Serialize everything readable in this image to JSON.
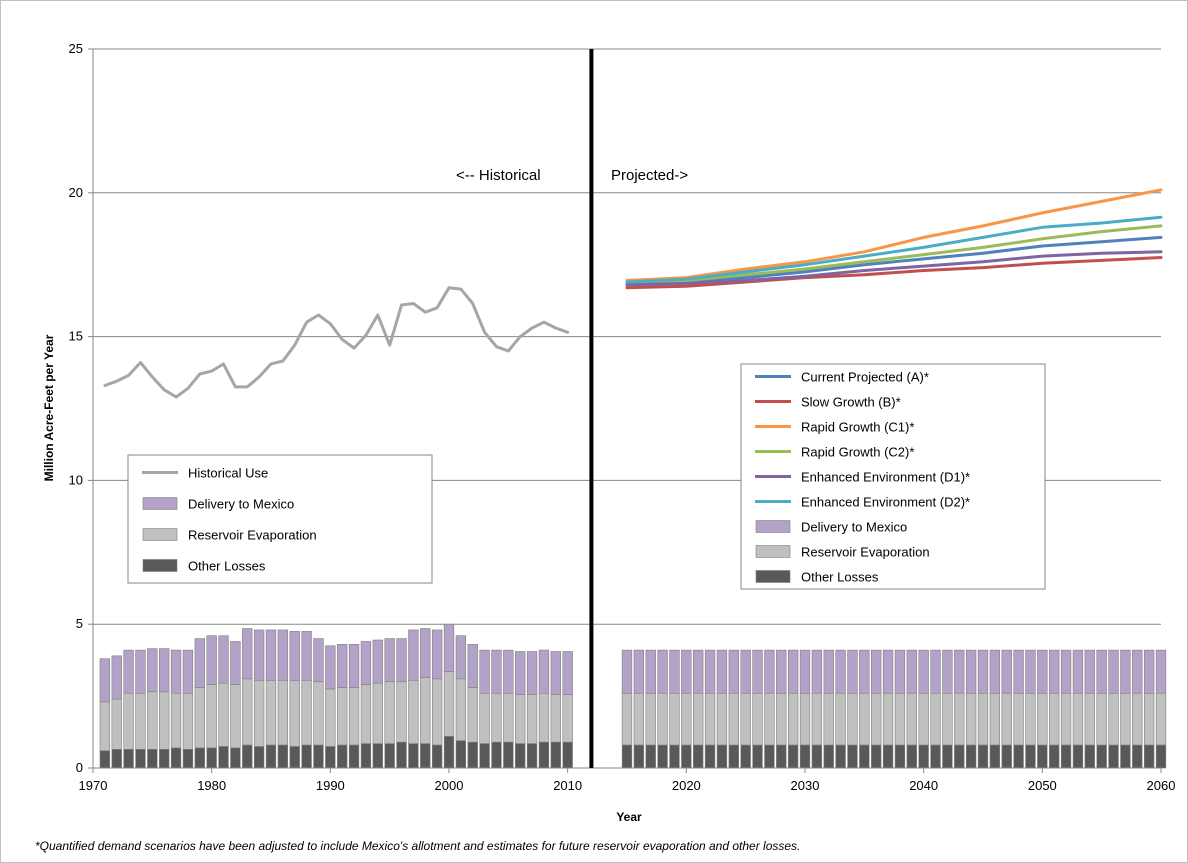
{
  "chart_data": {
    "type": "line+stacked-bar",
    "ylabel": "Million Acre-Feet per Year",
    "xlabel": "Year",
    "xlim": [
      1970,
      2060
    ],
    "ylim": [
      0,
      25
    ],
    "yticks": [
      "0",
      "5",
      "10",
      "15",
      "20",
      "25"
    ],
    "xticks": [
      "1970",
      "1980",
      "1990",
      "2000",
      "2010",
      "2020",
      "2030",
      "2040",
      "2050",
      "2060"
    ],
    "divider_year": 2012,
    "annotations": {
      "historical": "<-- Historical",
      "projected": "Projected->"
    },
    "footnote": "*Quantified demand scenarios have been adjusted to include Mexico's allotment and estimates for future reservoir evaporation and other losses.",
    "colors": {
      "historical": "#a6a6a6",
      "mexico": "#b3a2c7",
      "evaporation": "#c0c0c0",
      "other": "#595959",
      "A": "#4f81bd",
      "B": "#c0504d",
      "C1": "#f79646",
      "C2": "#9bbb59",
      "D1": "#8064a2",
      "D2": "#4bacc6"
    },
    "historical_use": {
      "name": "Historical Use",
      "x": [
        1971,
        1972,
        1973,
        1974,
        1975,
        1976,
        1977,
        1978,
        1979,
        1980,
        1981,
        1982,
        1983,
        1984,
        1985,
        1986,
        1987,
        1988,
        1989,
        1990,
        1991,
        1992,
        1993,
        1994,
        1995,
        1996,
        1997,
        1998,
        1999,
        2000,
        2001,
        2002,
        2003,
        2004,
        2005,
        2006,
        2007,
        2008,
        2009,
        2010
      ],
      "y": [
        13.3,
        13.45,
        13.65,
        14.1,
        13.6,
        13.15,
        12.9,
        13.2,
        13.7,
        13.8,
        14.05,
        13.25,
        13.25,
        13.6,
        14.05,
        14.15,
        14.7,
        15.5,
        15.75,
        15.45,
        14.9,
        14.6,
        15.05,
        15.75,
        14.7,
        16.1,
        16.15,
        15.85,
        16.0,
        16.7,
        16.65,
        16.15,
        15.15,
        14.65,
        14.5,
        15.0,
        15.3,
        15.5,
        15.3,
        15.15
      ]
    },
    "historical_bars": {
      "x": [
        1971,
        1972,
        1973,
        1974,
        1975,
        1976,
        1977,
        1978,
        1979,
        1980,
        1981,
        1982,
        1983,
        1984,
        1985,
        1986,
        1987,
        1988,
        1989,
        1990,
        1991,
        1992,
        1993,
        1994,
        1995,
        1996,
        1997,
        1998,
        1999,
        2000,
        2001,
        2002,
        2003,
        2004,
        2005,
        2006,
        2007,
        2008,
        2009,
        2010
      ],
      "other": [
        0.6,
        0.65,
        0.65,
        0.65,
        0.65,
        0.65,
        0.7,
        0.65,
        0.7,
        0.7,
        0.75,
        0.7,
        0.8,
        0.75,
        0.8,
        0.8,
        0.75,
        0.8,
        0.8,
        0.75,
        0.8,
        0.8,
        0.85,
        0.85,
        0.85,
        0.9,
        0.85,
        0.85,
        0.8,
        1.1,
        0.95,
        0.9,
        0.85,
        0.9,
        0.9,
        0.85,
        0.85,
        0.9,
        0.9,
        0.9
      ],
      "evaporation": [
        1.7,
        1.75,
        1.95,
        1.95,
        2.0,
        2.0,
        1.9,
        1.95,
        2.1,
        2.2,
        2.2,
        2.2,
        2.3,
        2.3,
        2.25,
        2.25,
        2.3,
        2.25,
        2.2,
        2.0,
        2.0,
        2.0,
        2.05,
        2.1,
        2.15,
        2.1,
        2.2,
        2.3,
        2.3,
        2.25,
        2.15,
        1.9,
        1.75,
        1.7,
        1.7,
        1.7,
        1.7,
        1.7,
        1.65,
        1.65
      ],
      "mexico": [
        1.5,
        1.5,
        1.5,
        1.5,
        1.5,
        1.5,
        1.5,
        1.5,
        1.7,
        1.7,
        1.65,
        1.5,
        1.75,
        1.75,
        1.75,
        1.75,
        1.7,
        1.7,
        1.5,
        1.5,
        1.5,
        1.5,
        1.5,
        1.5,
        1.5,
        1.5,
        1.75,
        1.7,
        1.7,
        1.65,
        1.5,
        1.5,
        1.5,
        1.5,
        1.5,
        1.5,
        1.5,
        1.5,
        1.5,
        1.5
      ]
    },
    "projected_bars": {
      "x_start": 2015,
      "x_end": 2060,
      "other": 0.8,
      "evaporation": 1.8,
      "mexico": 1.5
    },
    "projected_series": [
      {
        "key": "A",
        "name": "Current Projected (A)*",
        "x": [
          2015,
          2020,
          2025,
          2030,
          2035,
          2040,
          2045,
          2050,
          2055,
          2060
        ],
        "y": [
          16.8,
          16.9,
          17.05,
          17.25,
          17.5,
          17.7,
          17.9,
          18.15,
          18.3,
          18.45
        ]
      },
      {
        "key": "B",
        "name": "Slow Growth (B)*",
        "x": [
          2015,
          2020,
          2025,
          2030,
          2035,
          2040,
          2045,
          2050,
          2055,
          2060
        ],
        "y": [
          16.7,
          16.75,
          16.9,
          17.05,
          17.15,
          17.3,
          17.4,
          17.55,
          17.65,
          17.75
        ]
      },
      {
        "key": "C1",
        "name": "Rapid Growth (C1)*",
        "x": [
          2015,
          2020,
          2025,
          2030,
          2035,
          2040,
          2045,
          2050,
          2055,
          2060
        ],
        "y": [
          16.95,
          17.05,
          17.35,
          17.6,
          17.95,
          18.45,
          18.85,
          19.3,
          19.7,
          20.1
        ]
      },
      {
        "key": "C2",
        "name": "Rapid Growth (C2)*",
        "x": [
          2015,
          2020,
          2025,
          2030,
          2035,
          2040,
          2045,
          2050,
          2055,
          2060
        ],
        "y": [
          16.85,
          16.95,
          17.15,
          17.35,
          17.6,
          17.85,
          18.1,
          18.4,
          18.65,
          18.85
        ]
      },
      {
        "key": "D1",
        "name": "Enhanced Environment (D1)*",
        "x": [
          2015,
          2020,
          2025,
          2030,
          2035,
          2040,
          2045,
          2050,
          2055,
          2060
        ],
        "y": [
          16.8,
          16.85,
          16.95,
          17.1,
          17.3,
          17.45,
          17.6,
          17.8,
          17.9,
          17.95
        ]
      },
      {
        "key": "D2",
        "name": "Enhanced Environment (D2)*",
        "x": [
          2015,
          2020,
          2025,
          2030,
          2035,
          2040,
          2045,
          2050,
          2055,
          2060
        ],
        "y": [
          16.9,
          17.0,
          17.25,
          17.5,
          17.8,
          18.1,
          18.45,
          18.8,
          18.95,
          19.15
        ]
      }
    ],
    "legend_left": [
      {
        "label": "Historical Use",
        "kind": "line",
        "color_key": "historical"
      },
      {
        "label": "Delivery to Mexico",
        "kind": "box",
        "color_key": "mexico"
      },
      {
        "label": "Reservoir Evaporation",
        "kind": "box",
        "color_key": "evaporation"
      },
      {
        "label": "Other Losses",
        "kind": "box",
        "color_key": "other"
      }
    ],
    "legend_right": [
      {
        "label": "Current Projected (A)*",
        "kind": "line",
        "color_key": "A"
      },
      {
        "label": "Slow Growth (B)*",
        "kind": "line",
        "color_key": "B"
      },
      {
        "label": "Rapid Growth (C1)*",
        "kind": "line",
        "color_key": "C1"
      },
      {
        "label": "Rapid Growth (C2)*",
        "kind": "line",
        "color_key": "C2"
      },
      {
        "label": "Enhanced Environment (D1)*",
        "kind": "line",
        "color_key": "D1"
      },
      {
        "label": "Enhanced Environment (D2)*",
        "kind": "line",
        "color_key": "D2"
      },
      {
        "label": "Delivery to Mexico",
        "kind": "box",
        "color_key": "mexico"
      },
      {
        "label": "Reservoir Evaporation",
        "kind": "box",
        "color_key": "evaporation"
      },
      {
        "label": "Other Losses",
        "kind": "box",
        "color_key": "other"
      }
    ]
  }
}
